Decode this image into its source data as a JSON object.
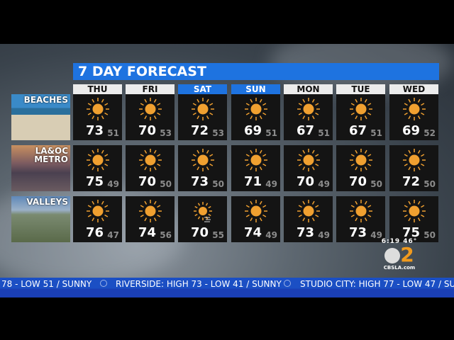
{
  "title": "7 DAY FORECAST",
  "days": [
    {
      "label": "THU",
      "highlight": false
    },
    {
      "label": "FRI",
      "highlight": false
    },
    {
      "label": "SAT",
      "highlight": true
    },
    {
      "label": "SUN",
      "highlight": true
    },
    {
      "label": "MON",
      "highlight": false
    },
    {
      "label": "TUE",
      "highlight": false
    },
    {
      "label": "WED",
      "highlight": false
    }
  ],
  "regions": [
    {
      "label1": "BEACHES",
      "label2": "",
      "icon": "sun",
      "highs": [
        "73",
        "70",
        "72",
        "69",
        "67",
        "67",
        "69"
      ],
      "lows": [
        "51",
        "53",
        "53",
        "51",
        "51",
        "51",
        "52"
      ]
    },
    {
      "label1": "LA&OC",
      "label2": "METRO",
      "highs": [
        "75",
        "70",
        "73",
        "71",
        "70",
        "70",
        "72"
      ],
      "lows": [
        "49",
        "50",
        "50",
        "49",
        "49",
        "50",
        "50"
      ]
    },
    {
      "label1": "VALLEYS",
      "label2": "",
      "highs": [
        "76",
        "74",
        "70",
        "74",
        "73",
        "73",
        "75"
      ],
      "lows": [
        "47",
        "56",
        "55",
        "49",
        "49",
        "49",
        "50"
      ]
    }
  ],
  "icons": [
    [
      "sun",
      "sun",
      "sun",
      "sun",
      "sun",
      "sun",
      "sun"
    ],
    [
      "sun",
      "sun",
      "sun",
      "sun",
      "sun",
      "sun",
      "sun"
    ],
    [
      "sun",
      "sun",
      "sun-wind",
      "sun",
      "sun",
      "sun",
      "sun"
    ]
  ],
  "colors": {
    "accent": "#1e73e0",
    "sun": "#f0a030"
  },
  "station": {
    "time": "6:19",
    "temp": "46°",
    "logo_text": "2",
    "site": "CBSLA.com"
  },
  "ticker": [
    "78 - LOW 51 / SUNNY",
    "RIVERSIDE: HIGH 73 - LOW 41 / SUNNY",
    "STUDIO CITY: HIGH 77 - LOW 47 / SU"
  ]
}
